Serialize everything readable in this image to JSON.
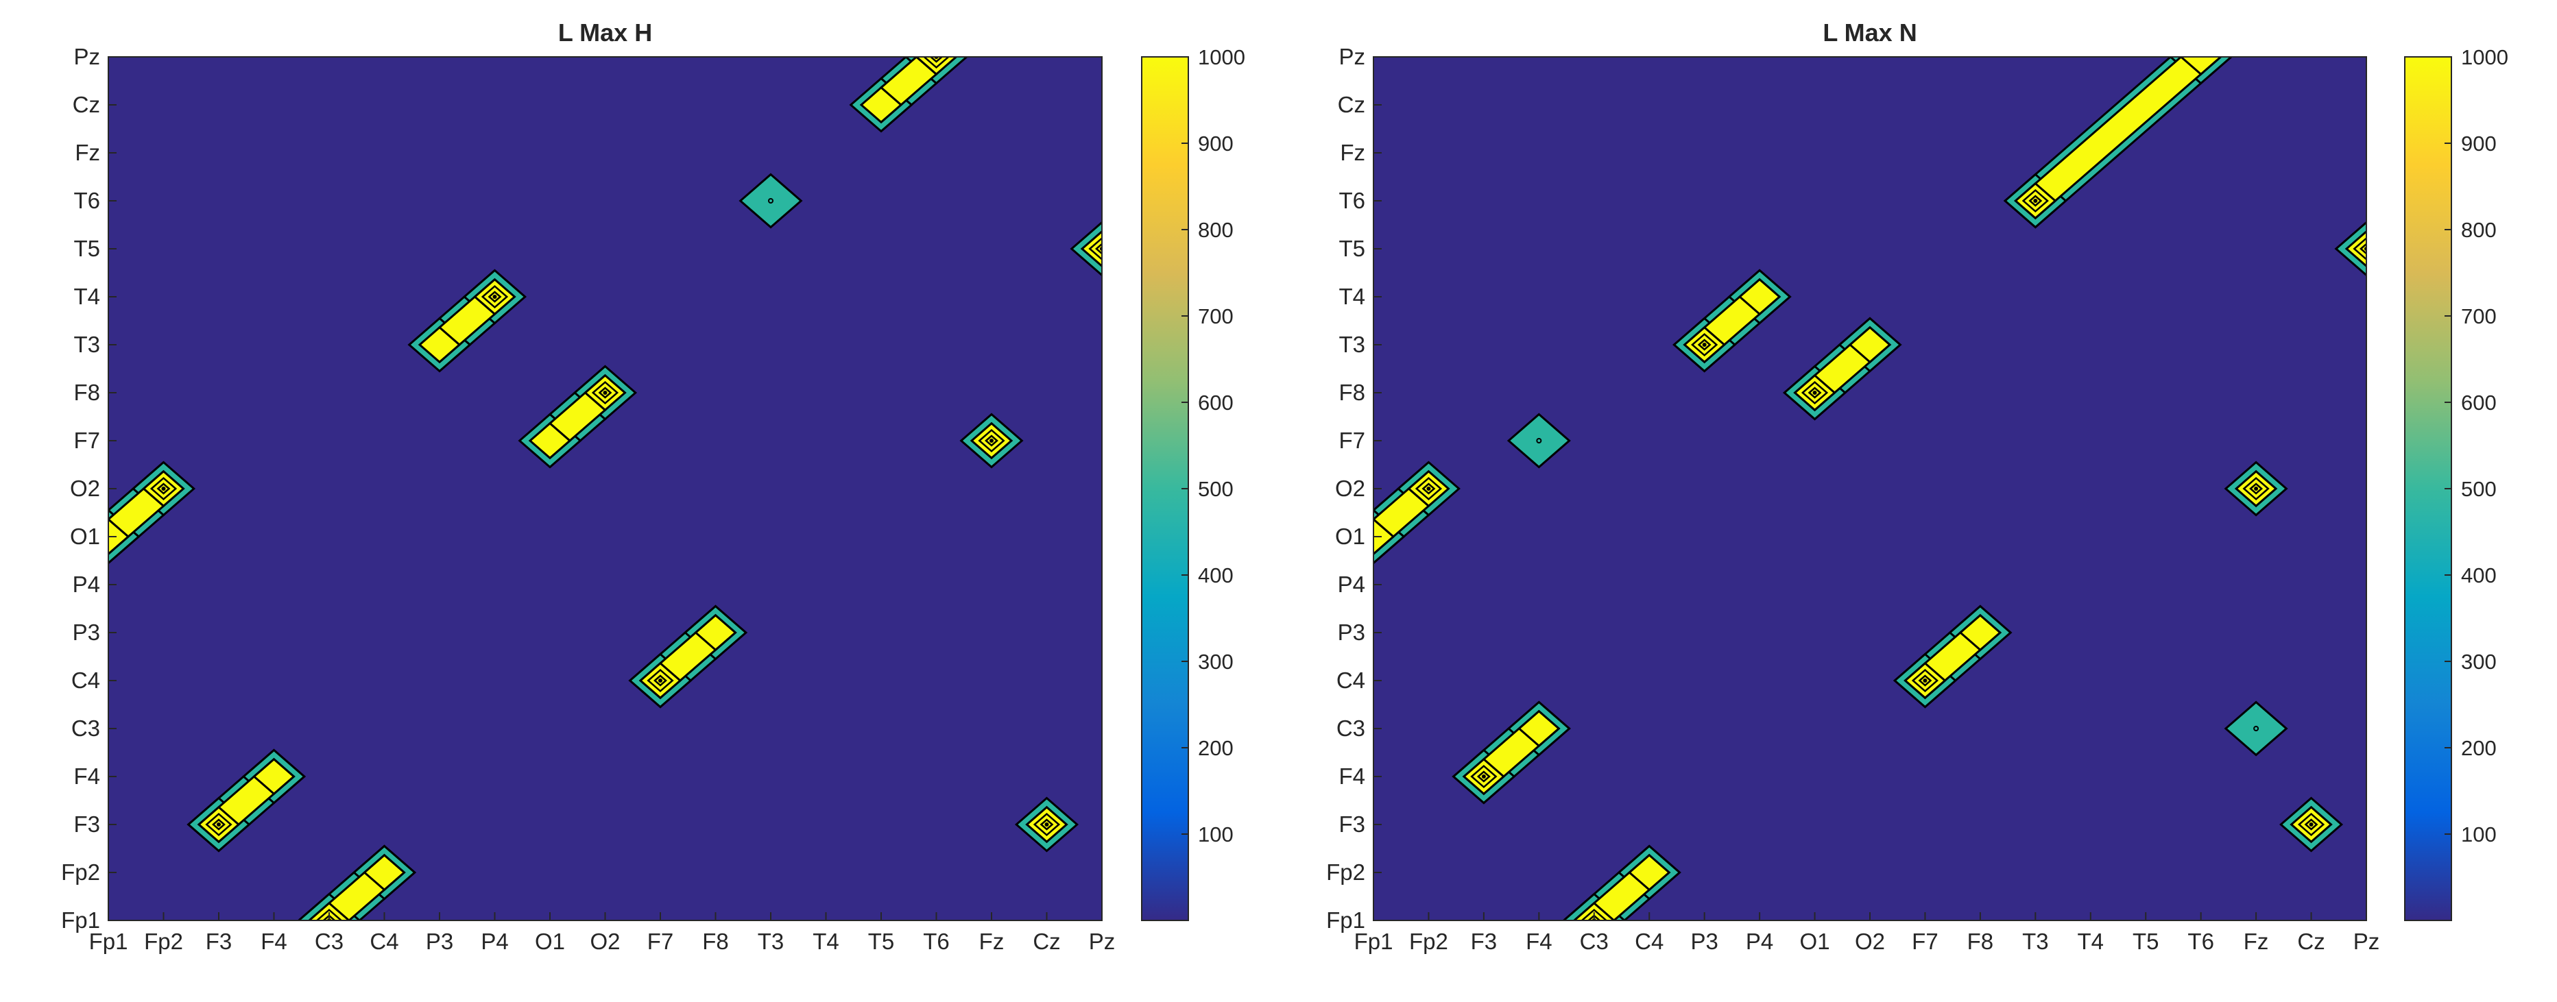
{
  "chart_data": [
    {
      "type": "contour",
      "title": "L Max H",
      "categories": [
        "Fp1",
        "Fp2",
        "F3",
        "F4",
        "C3",
        "C4",
        "P3",
        "P4",
        "O1",
        "O2",
        "F7",
        "F8",
        "T3",
        "T4",
        "T5",
        "T6",
        "Fz",
        "Cz",
        "Pz"
      ],
      "colorbar": {
        "ticks": [
          100,
          200,
          300,
          400,
          500,
          600,
          700,
          800,
          900,
          1000
        ],
        "range": [
          0,
          1000
        ]
      },
      "blobs": [
        {
          "x": 1.0,
          "y": 9.0,
          "peak": 1000,
          "path": [
            [
              1.0,
              9.0
            ],
            [
              0.0,
              8.0
            ]
          ]
        },
        {
          "x": 2.0,
          "y": 2.0,
          "peak": 1000,
          "path": [
            [
              2.0,
              2.0
            ],
            [
              3.0,
              3.0
            ]
          ]
        },
        {
          "x": 4.0,
          "y": 0.0,
          "peak": 1000,
          "path": [
            [
              4.0,
              0.0
            ],
            [
              5.0,
              1.0
            ]
          ]
        },
        {
          "x": 7.0,
          "y": 13.0,
          "peak": 1000,
          "path": [
            [
              7.0,
              13.0
            ],
            [
              6.0,
              12.0
            ]
          ]
        },
        {
          "x": 9.0,
          "y": 11.0,
          "peak": 1000,
          "path": [
            [
              9.0,
              11.0
            ],
            [
              8.0,
              10.0
            ]
          ]
        },
        {
          "x": 10.0,
          "y": 5.0,
          "peak": 1000,
          "path": [
            [
              10.0,
              5.0
            ],
            [
              11.0,
              6.0
            ]
          ]
        },
        {
          "x": 12.0,
          "y": 15.0,
          "peak": 600,
          "path": [
            [
              12.0,
              15.0
            ]
          ]
        },
        {
          "x": 15.0,
          "y": 18.0,
          "peak": 1000,
          "path": [
            [
              15.0,
              18.0
            ],
            [
              14.0,
              17.0
            ]
          ]
        },
        {
          "x": 16.0,
          "y": 10.0,
          "peak": 1000,
          "path": [
            [
              16.0,
              10.0
            ]
          ]
        },
        {
          "x": 17.0,
          "y": 2.0,
          "peak": 1000,
          "path": [
            [
              17.0,
              2.0
            ]
          ]
        },
        {
          "x": 18.0,
          "y": 14.0,
          "peak": 1000,
          "path": [
            [
              18.0,
              14.0
            ]
          ]
        }
      ]
    },
    {
      "type": "contour",
      "title": "L Max N",
      "categories": [
        "Fp1",
        "Fp2",
        "F3",
        "F4",
        "C3",
        "C4",
        "P3",
        "P4",
        "O1",
        "O2",
        "F7",
        "F8",
        "T3",
        "T4",
        "T5",
        "T6",
        "Fz",
        "Cz",
        "Pz"
      ],
      "colorbar": {
        "ticks": [
          100,
          200,
          300,
          400,
          500,
          600,
          700,
          800,
          900,
          1000
        ],
        "range": [
          0,
          1000
        ]
      },
      "blobs": [
        {
          "x": 1.0,
          "y": 9.0,
          "peak": 1000,
          "path": [
            [
              1.0,
              9.0
            ],
            [
              0.0,
              8.0
            ]
          ]
        },
        {
          "x": 2.0,
          "y": 3.0,
          "peak": 1000,
          "path": [
            [
              2.0,
              3.0
            ],
            [
              3.0,
              4.0
            ]
          ]
        },
        {
          "x": 4.0,
          "y": 0.0,
          "peak": 1000,
          "path": [
            [
              4.0,
              0.0
            ],
            [
              5.0,
              1.0
            ]
          ]
        },
        {
          "x": 3.0,
          "y": 10.0,
          "peak": 600,
          "path": [
            [
              3.0,
              10.0
            ]
          ]
        },
        {
          "x": 6.0,
          "y": 12.0,
          "peak": 1000,
          "path": [
            [
              6.0,
              12.0
            ],
            [
              7.0,
              13.0
            ]
          ]
        },
        {
          "x": 8.0,
          "y": 11.0,
          "peak": 1000,
          "path": [
            [
              8.0,
              11.0
            ],
            [
              9.0,
              12.0
            ]
          ]
        },
        {
          "x": 10.0,
          "y": 5.0,
          "peak": 1000,
          "path": [
            [
              10.0,
              5.0
            ],
            [
              11.0,
              6.0
            ]
          ]
        },
        {
          "x": 12.0,
          "y": 15.0,
          "peak": 1000,
          "path": [
            [
              12.0,
              15.0
            ],
            [
              15.0,
              18.0
            ]
          ]
        },
        {
          "x": 16.0,
          "y": 9.0,
          "peak": 1000,
          "path": [
            [
              16.0,
              9.0
            ]
          ]
        },
        {
          "x": 16.0,
          "y": 4.0,
          "peak": 600,
          "path": [
            [
              16.0,
              4.0
            ]
          ]
        },
        {
          "x": 17.0,
          "y": 2.0,
          "peak": 1000,
          "path": [
            [
              17.0,
              2.0
            ]
          ]
        },
        {
          "x": 18.0,
          "y": 14.0,
          "peak": 1000,
          "path": [
            [
              18.0,
              14.0
            ]
          ]
        }
      ]
    }
  ],
  "colors": {
    "background": "#352a87",
    "low_fill": "#2ab7a0",
    "high_fill": "#f9fb0e",
    "contour_line": "#000000",
    "colorbar_stops": [
      "#352a87",
      "#0363e1",
      "#1485d4",
      "#06a7c6",
      "#38b99e",
      "#92bf73",
      "#d9ba56",
      "#fcce2e",
      "#f9fb0e"
    ]
  }
}
